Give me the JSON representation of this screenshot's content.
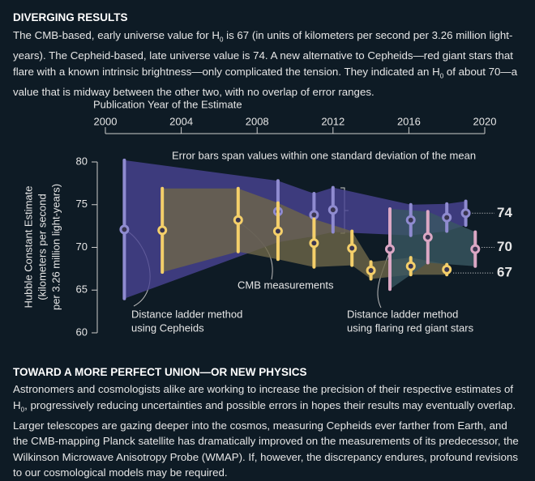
{
  "header": {
    "title": "DIVERGING RESULTS",
    "paragraph": [
      "The CMB-based, early universe value for H",
      "0",
      " is 67 (in units of kilometers per second per 3.26 million light-years). The Cepheid-based, late universe value is 74. A new alternative to Cepheids—red giant stars that flare with a known intrinsic brightness—only complicated the tension. They indicated an H",
      "0",
      " of about 70—a value that is midway between the other two, with no overlap of error ranges."
    ]
  },
  "chart_data": {
    "type": "errorbar",
    "xlabel": "Publication Year of the Estimate",
    "ylabel": [
      "Hubble Constant Estimate",
      "(kilometers per second",
      "per 3.26 million light-years)"
    ],
    "xlim": [
      2000,
      2020
    ],
    "xticks": [
      2000,
      2004,
      2008,
      2012,
      2016,
      2020
    ],
    "ylim": [
      60,
      80
    ],
    "yticks": [
      60,
      65,
      70,
      75,
      80
    ],
    "annotations": [
      "Error bars span values within one standard deviation of the mean",
      "CMB measurements"
    ],
    "series": [
      {
        "name": [
          "Distance ladder method",
          "using Cepheids"
        ],
        "color": "#8f8bd0",
        "band_color": "#4a4493",
        "end_label": 74,
        "x": [
          2001,
          2009.1,
          2011,
          2012,
          2016.1,
          2018,
          2019
        ],
        "values": [
          72.1,
          74.2,
          73.8,
          74.4,
          73.2,
          73.5,
          74.0
        ],
        "errors": [
          8.1,
          3.6,
          2.5,
          2.6,
          1.8,
          1.6,
          1.4
        ]
      },
      {
        "name": [
          "CMB measurements"
        ],
        "color": "#f4cf6a",
        "band_color": "#6e6748",
        "end_label": 67,
        "x": [
          2003,
          2007,
          2009.1,
          2011,
          2013,
          2014,
          2016.1,
          2018
        ],
        "values": [
          72,
          73.2,
          71.9,
          70.5,
          69.9,
          67.3,
          67.8,
          67.4
        ],
        "errors": [
          4.9,
          3.7,
          3.3,
          2.8,
          2.0,
          1.0,
          1.0,
          0.6
        ]
      },
      {
        "name": [
          "Distance ladder method",
          "using flaring red giant stars"
        ],
        "color": "#dba7c4",
        "band_color": "#3a5862",
        "end_label": 70,
        "x": [
          2015,
          2017,
          2019.5
        ],
        "values": [
          69.8,
          71.2,
          69.8
        ],
        "errors": [
          4.7,
          3.0,
          2.0
        ]
      }
    ]
  },
  "footer": {
    "title": "TOWARD A MORE PERFECT UNION—OR NEW PHYSICS",
    "paragraph": [
      "Astronomers and cosmologists alike are working to increase the precision of their respective estimates of H",
      "0",
      ", progressively reducing uncertainties and possible errors in hopes their results may eventually overlap. Larger telescopes are gazing deeper into the cosmos, measuring Cepheids ever farther from Earth, and the CMB-mapping Planck satellite has dramatically improved on the measurements of its predecessor, the Wilkinson Microwave Anisotropy Probe (WMAP). If, however, the discrepancy endures, profound revisions to our cosmological models may be required."
    ]
  }
}
